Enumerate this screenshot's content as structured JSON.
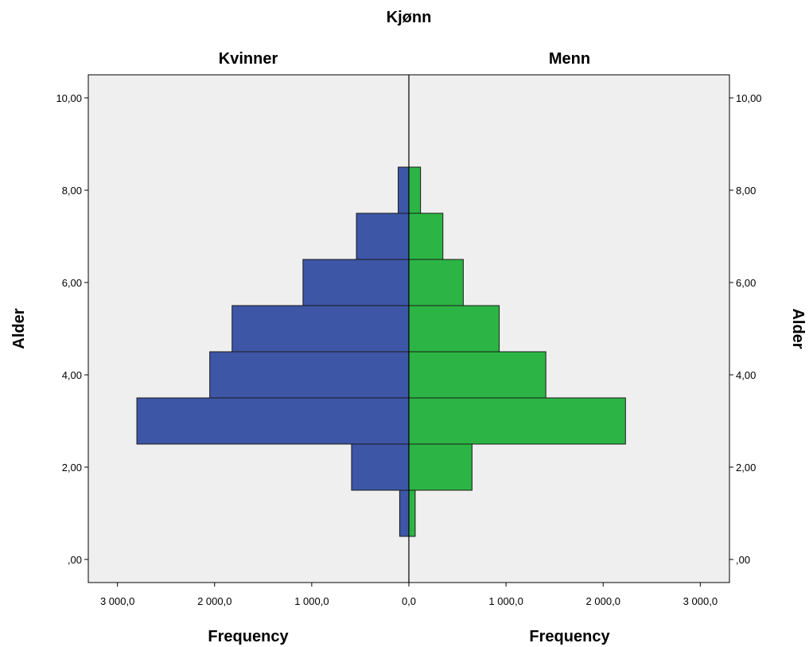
{
  "chart_data": {
    "type": "bar",
    "subtype": "population-pyramid",
    "title": "Kjønn",
    "left_panel": "Kvinner",
    "right_panel": "Menn",
    "xlabel": "Frequency",
    "ylabel": "Alder",
    "xlim": [
      0,
      3300
    ],
    "ylim": [
      -0.5,
      10.5
    ],
    "x_ticks": [
      "3 000,0",
      "2 000,0",
      "1 000,0",
      "0,0",
      "1 000,0",
      "2 000,0",
      "3 000,0"
    ],
    "y_ticks": [
      ",00",
      "2,00",
      "4,00",
      "6,00",
      "8,00",
      "10,00"
    ],
    "bins": [
      {
        "from": 0.5,
        "to": 1.5
      },
      {
        "from": 1.5,
        "to": 2.5
      },
      {
        "from": 2.5,
        "to": 3.5
      },
      {
        "from": 3.5,
        "to": 4.5
      },
      {
        "from": 4.5,
        "to": 5.5
      },
      {
        "from": 5.5,
        "to": 6.5
      },
      {
        "from": 6.5,
        "to": 7.5
      },
      {
        "from": 7.5,
        "to": 8.5
      }
    ],
    "series": [
      {
        "name": "Kvinner",
        "values": [
          95,
          590,
          2800,
          2050,
          1820,
          1090,
          540,
          110
        ],
        "color": "#3d56a6"
      },
      {
        "name": "Menn",
        "values": [
          65,
          650,
          2230,
          1410,
          930,
          560,
          350,
          120
        ],
        "color": "#2cb544"
      }
    ],
    "panel_background": "#efefef",
    "grid": false
  }
}
